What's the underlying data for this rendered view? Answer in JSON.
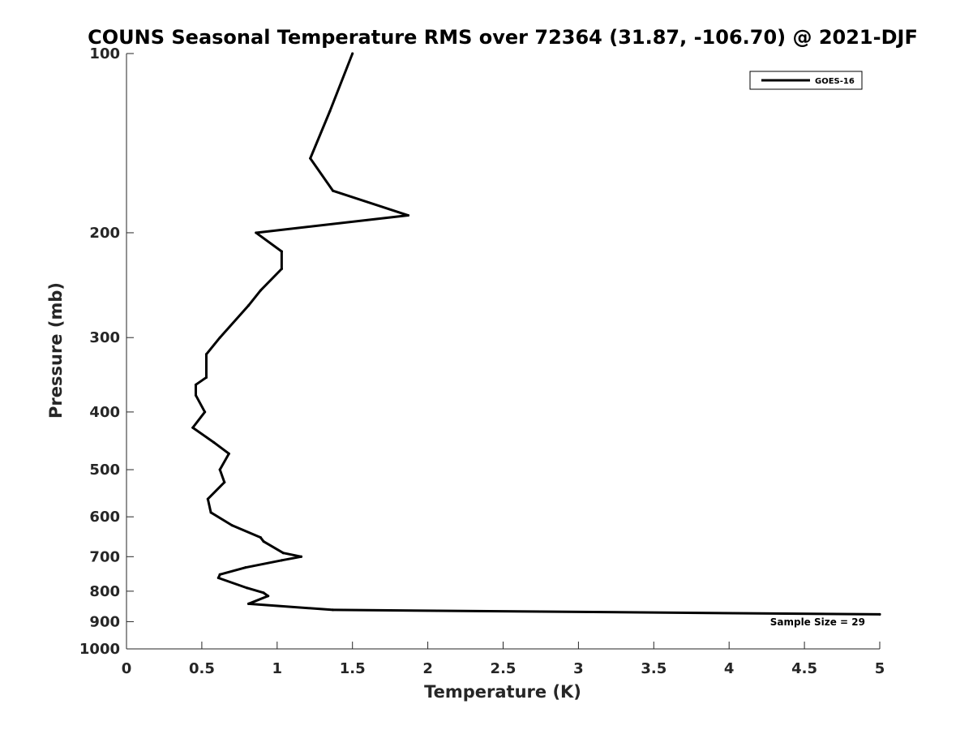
{
  "chart_data": {
    "type": "line",
    "title": "COUNS Seasonal Temperature RMS over 72364 (31.87, -106.70) @ 2021-DJF",
    "xlabel": "Temperature (K)",
    "ylabel": "Pressure (mb)",
    "xlim": [
      0,
      5
    ],
    "ylim": [
      100,
      1000
    ],
    "y_scale": "log",
    "y_reversed": true,
    "grid": false,
    "x_ticks": [
      0,
      0.5,
      1,
      1.5,
      2,
      2.5,
      3,
      3.5,
      4,
      4.5,
      5
    ],
    "x_tick_labels": [
      "0",
      "0.5",
      "1",
      "1.5",
      "2",
      "2.5",
      "3",
      "3.5",
      "4",
      "4.5",
      "5"
    ],
    "y_ticks": [
      100,
      200,
      300,
      400,
      500,
      600,
      700,
      800,
      900,
      1000
    ],
    "y_tick_labels": [
      "100",
      "200",
      "300",
      "400",
      "500",
      "600",
      "700",
      "800",
      "900",
      "1000"
    ],
    "legend_position": "top-right",
    "series": [
      {
        "name": "GOES-16",
        "color": "#000000",
        "points": [
          {
            "x": 1.5,
            "y": 100
          },
          {
            "x": 1.35,
            "y": 125
          },
          {
            "x": 1.22,
            "y": 150
          },
          {
            "x": 1.37,
            "y": 170
          },
          {
            "x": 1.87,
            "y": 187
          },
          {
            "x": 0.86,
            "y": 200
          },
          {
            "x": 1.03,
            "y": 215
          },
          {
            "x": 1.03,
            "y": 230
          },
          {
            "x": 0.89,
            "y": 250
          },
          {
            "x": 0.81,
            "y": 265
          },
          {
            "x": 0.62,
            "y": 300
          },
          {
            "x": 0.53,
            "y": 320
          },
          {
            "x": 0.53,
            "y": 350
          },
          {
            "x": 0.46,
            "y": 360
          },
          {
            "x": 0.46,
            "y": 375
          },
          {
            "x": 0.52,
            "y": 400
          },
          {
            "x": 0.44,
            "y": 425
          },
          {
            "x": 0.58,
            "y": 450
          },
          {
            "x": 0.68,
            "y": 470
          },
          {
            "x": 0.62,
            "y": 500
          },
          {
            "x": 0.65,
            "y": 525
          },
          {
            "x": 0.54,
            "y": 560
          },
          {
            "x": 0.56,
            "y": 590
          },
          {
            "x": 0.7,
            "y": 620
          },
          {
            "x": 0.89,
            "y": 650
          },
          {
            "x": 0.91,
            "y": 660
          },
          {
            "x": 1.04,
            "y": 690
          },
          {
            "x": 1.16,
            "y": 700
          },
          {
            "x": 1.03,
            "y": 710
          },
          {
            "x": 0.79,
            "y": 730
          },
          {
            "x": 0.62,
            "y": 750
          },
          {
            "x": 0.61,
            "y": 760
          },
          {
            "x": 0.8,
            "y": 790
          },
          {
            "x": 0.91,
            "y": 805
          },
          {
            "x": 0.94,
            "y": 815
          },
          {
            "x": 0.81,
            "y": 840
          },
          {
            "x": 1.37,
            "y": 860
          },
          {
            "x": 5.0,
            "y": 875
          }
        ]
      }
    ],
    "annotations": [
      "Sample Size = 29"
    ]
  }
}
